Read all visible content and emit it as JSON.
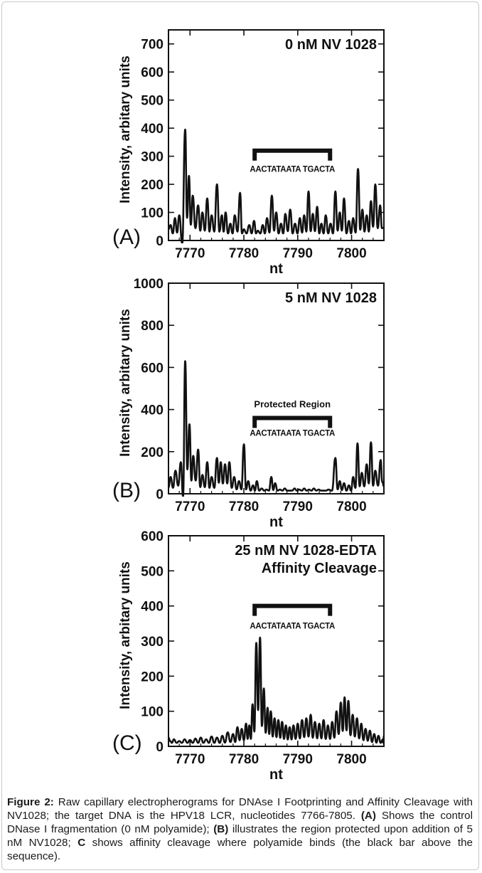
{
  "figure": {
    "caption_label": "Figure 2:",
    "caption_text": " Raw capillary electropherograms for DNAse I Footprinting and Affinity Cleavage with NV1028; the target DNA is the HPV18 LCR, nucleotides 7766-7805. ",
    "caption_a_label": "(A)",
    "caption_a_text": " Shows the control DNase I fragmentation (0 nM polyamide); ",
    "caption_b_label": "(B)",
    "caption_b_text": " illustrates the region protected upon addition of 5 nM NV1028; ",
    "caption_c_label": "C",
    "caption_c_text": " shows affinity cleavage where polyamide binds (the black bar above the sequence)."
  },
  "colors": {
    "trace": "#111111",
    "axis": "#111111",
    "background": "#ffffff"
  },
  "chart_data": [
    {
      "type": "line",
      "panel_label": "(A)",
      "annotation": [
        "0 nM NV 1028"
      ],
      "xlabel": "nt",
      "ylabel": "Intensity, arbitary units",
      "xlim": [
        7766,
        7806
      ],
      "ylim": [
        0,
        750
      ],
      "xticks": [
        7770,
        7780,
        7790,
        7800
      ],
      "yticks": [
        0,
        100,
        200,
        300,
        400,
        500,
        600,
        700
      ],
      "bracket": {
        "x_start": 7782,
        "x_end": 7796,
        "y": 320,
        "label_above": "",
        "sequence": "AACTATAATA TGACTA",
        "sequence_y": 245
      },
      "peaks": [
        [
          7766.4,
          55
        ],
        [
          7767.2,
          80
        ],
        [
          7768.0,
          90
        ],
        [
          7769.1,
          395
        ],
        [
          7769.8,
          230
        ],
        [
          7770.5,
          160
        ],
        [
          7771.5,
          125
        ],
        [
          7772.3,
          100
        ],
        [
          7773.2,
          150
        ],
        [
          7774.0,
          90
        ],
        [
          7775.0,
          200
        ],
        [
          7775.9,
          90
        ],
        [
          7776.6,
          100
        ],
        [
          7777.5,
          60
        ],
        [
          7778.3,
          90
        ],
        [
          7779.3,
          170
        ],
        [
          7780.0,
          40
        ],
        [
          7781.0,
          55
        ],
        [
          7781.9,
          70
        ],
        [
          7782.6,
          35
        ],
        [
          7783.5,
          55
        ],
        [
          7784.3,
          80
        ],
        [
          7785.2,
          160
        ],
        [
          7786.0,
          100
        ],
        [
          7786.9,
          60
        ],
        [
          7787.7,
          95
        ],
        [
          7788.6,
          110
        ],
        [
          7789.5,
          60
        ],
        [
          7790.4,
          80
        ],
        [
          7791.2,
          90
        ],
        [
          7792.0,
          175
        ],
        [
          7792.8,
          95
        ],
        [
          7793.6,
          120
        ],
        [
          7794.4,
          60
        ],
        [
          7795.2,
          90
        ],
        [
          7796.1,
          60
        ],
        [
          7797.0,
          175
        ],
        [
          7797.8,
          100
        ],
        [
          7798.6,
          150
        ],
        [
          7799.5,
          70
        ],
        [
          7800.3,
          80
        ],
        [
          7801.2,
          255
        ],
        [
          7802.0,
          110
        ],
        [
          7802.8,
          90
        ],
        [
          7803.6,
          140
        ],
        [
          7804.4,
          200
        ],
        [
          7805.3,
          125
        ]
      ],
      "baseline": 25,
      "troughs": [
        [
          7768.7,
          -30
        ]
      ]
    },
    {
      "type": "line",
      "panel_label": "(B)",
      "annotation": [
        "5 nM NV 1028"
      ],
      "xlabel": "nt",
      "ylabel": "Intensity, arbitary units",
      "xlim": [
        7766,
        7806
      ],
      "ylim": [
        0,
        1000
      ],
      "xticks": [
        7770,
        7780,
        7790,
        7800
      ],
      "yticks": [
        0,
        200,
        400,
        600,
        800,
        1000
      ],
      "bracket": {
        "x_start": 7782,
        "x_end": 7796,
        "y": 360,
        "label_above": "Protected Region",
        "sequence": "AACTATAATA TGACTA",
        "sequence_y": 275
      },
      "peaks": [
        [
          7766.4,
          80
        ],
        [
          7767.3,
          110
        ],
        [
          7768.3,
          150
        ],
        [
          7769.1,
          630
        ],
        [
          7769.9,
          330
        ],
        [
          7770.6,
          180
        ],
        [
          7771.5,
          210
        ],
        [
          7772.3,
          90
        ],
        [
          7773.2,
          150
        ],
        [
          7774.0,
          80
        ],
        [
          7775.0,
          170
        ],
        [
          7775.7,
          150
        ],
        [
          7776.5,
          140
        ],
        [
          7777.3,
          150
        ],
        [
          7778.2,
          80
        ],
        [
          7779.1,
          60
        ],
        [
          7780.0,
          235
        ],
        [
          7780.8,
          60
        ],
        [
          7781.7,
          40
        ],
        [
          7782.4,
          60
        ],
        [
          7783.3,
          25
        ],
        [
          7784.2,
          20
        ],
        [
          7785.1,
          80
        ],
        [
          7785.8,
          50
        ],
        [
          7786.7,
          20
        ],
        [
          7787.6,
          25
        ],
        [
          7788.5,
          15
        ],
        [
          7789.4,
          25
        ],
        [
          7790.3,
          20
        ],
        [
          7791.2,
          25
        ],
        [
          7792.1,
          20
        ],
        [
          7793.0,
          25
        ],
        [
          7793.9,
          20
        ],
        [
          7794.8,
          15
        ],
        [
          7795.7,
          20
        ],
        [
          7797.0,
          170
        ],
        [
          7797.8,
          60
        ],
        [
          7798.6,
          50
        ],
        [
          7799.5,
          40
        ],
        [
          7800.3,
          80
        ],
        [
          7801.1,
          240
        ],
        [
          7801.9,
          100
        ],
        [
          7802.8,
          140
        ],
        [
          7803.6,
          245
        ],
        [
          7804.4,
          110
        ],
        [
          7805.4,
          160
        ]
      ],
      "baseline": 15,
      "troughs": [
        [
          7768.7,
          -20
        ]
      ]
    },
    {
      "type": "line",
      "panel_label": "(C)",
      "annotation": [
        "25 nM NV 1028-EDTA",
        "Affinity Cleavage"
      ],
      "xlabel": "nt",
      "ylabel": "Intensity, arbitary units",
      "xlim": [
        7766,
        7806
      ],
      "ylim": [
        0,
        600
      ],
      "xticks": [
        7770,
        7780,
        7790,
        7800
      ],
      "yticks": [
        0,
        100,
        200,
        300,
        400,
        500,
        600
      ],
      "bracket": {
        "x_start": 7782,
        "x_end": 7796,
        "y": 400,
        "label_above": "",
        "sequence": "AACTATAATA TGACTA",
        "sequence_y": 335
      },
      "peaks": [
        [
          7766.3,
          15
        ],
        [
          7767.0,
          20
        ],
        [
          7768.0,
          15
        ],
        [
          7769.0,
          20
        ],
        [
          7770.0,
          18
        ],
        [
          7771.0,
          22
        ],
        [
          7772.0,
          25
        ],
        [
          7773.0,
          20
        ],
        [
          7774.0,
          28
        ],
        [
          7775.0,
          25
        ],
        [
          7776.0,
          30
        ],
        [
          7777.0,
          40
        ],
        [
          7778.0,
          35
        ],
        [
          7778.8,
          55
        ],
        [
          7779.6,
          50
        ],
        [
          7780.4,
          65
        ],
        [
          7781.0,
          60
        ],
        [
          7781.6,
          120
        ],
        [
          7782.3,
          295
        ],
        [
          7783.0,
          310
        ],
        [
          7783.7,
          165
        ],
        [
          7784.4,
          110
        ],
        [
          7785.0,
          100
        ],
        [
          7785.7,
          80
        ],
        [
          7786.4,
          75
        ],
        [
          7787.1,
          70
        ],
        [
          7787.8,
          60
        ],
        [
          7788.5,
          55
        ],
        [
          7789.2,
          60
        ],
        [
          7790.0,
          65
        ],
        [
          7790.8,
          75
        ],
        [
          7791.6,
          80
        ],
        [
          7792.4,
          90
        ],
        [
          7793.2,
          70
        ],
        [
          7794.0,
          65
        ],
        [
          7794.8,
          75
        ],
        [
          7795.6,
          60
        ],
        [
          7796.4,
          70
        ],
        [
          7797.2,
          100
        ],
        [
          7798.0,
          125
        ],
        [
          7798.7,
          140
        ],
        [
          7799.4,
          130
        ],
        [
          7800.2,
          90
        ],
        [
          7801.0,
          80
        ],
        [
          7801.8,
          65
        ],
        [
          7802.6,
          50
        ],
        [
          7803.4,
          45
        ],
        [
          7804.2,
          35
        ],
        [
          7805.0,
          30
        ],
        [
          7805.8,
          20
        ]
      ],
      "baseline": 10,
      "troughs": []
    }
  ]
}
